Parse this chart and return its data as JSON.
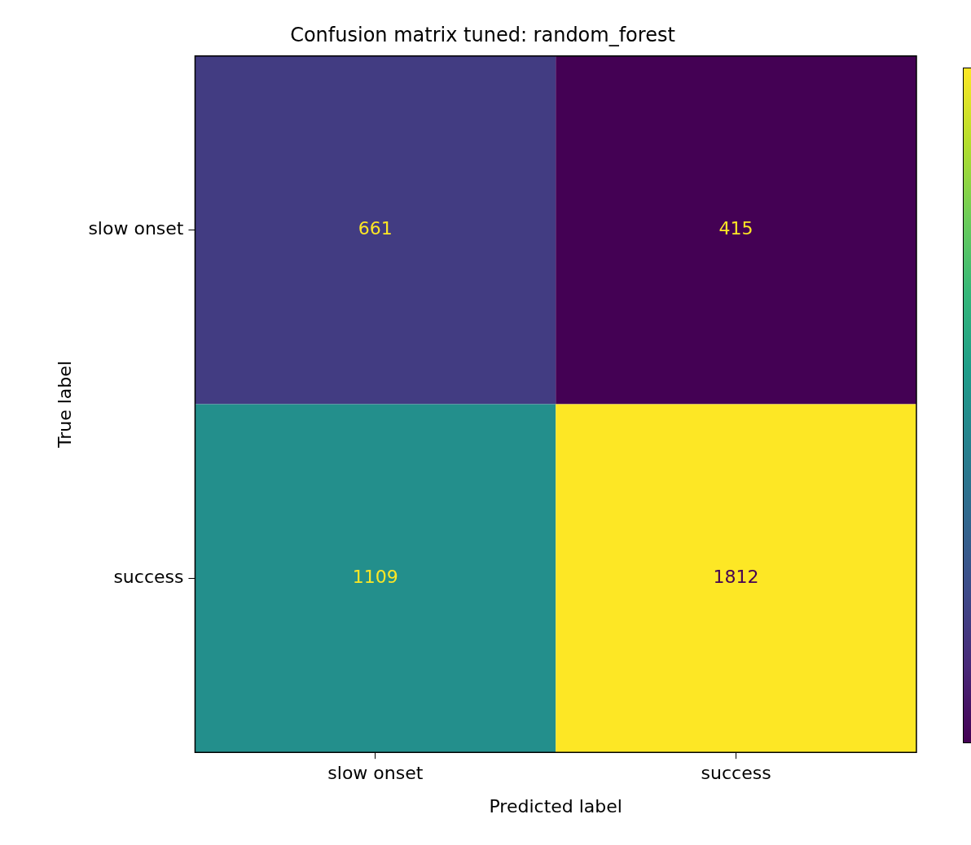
{
  "chart_data": {
    "type": "heatmap",
    "title": "Confusion matrix tuned: random_forest",
    "xlabel": "Predicted label",
    "ylabel": "True label",
    "categories": [
      "slow onset",
      "success"
    ],
    "y_categories": [
      "slow onset",
      "success"
    ],
    "data_labels": true,
    "cells": [
      [
        661,
        415
      ],
      [
        1109,
        1812
      ]
    ]
  }
}
